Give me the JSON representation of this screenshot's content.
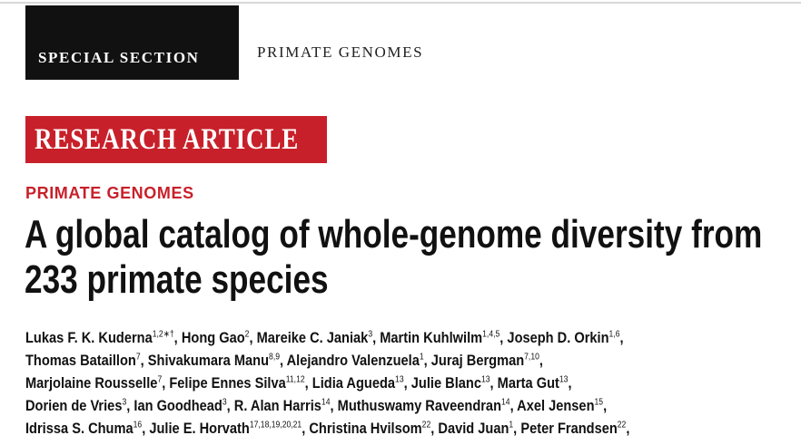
{
  "header": {
    "section_label": "SPECIAL SECTION",
    "section_topic": "PRIMATE GENOMES"
  },
  "article_type": "RESEARCH ARTICLE",
  "category": "PRIMATE GENOMES",
  "title": [
    "A global catalog of whole-genome diversity from",
    "233 primate species"
  ],
  "author_lines": [
    [
      {
        "name": "Lukas F. K. Kuderna",
        "sup": "1,2∗†",
        "after": ","
      },
      {
        "name": "Hong Gao",
        "sup": "2",
        "after": ","
      },
      {
        "name": "Mareike C. Janiak",
        "sup": "3",
        "after": ","
      },
      {
        "name": "Martin Kuhlwilm",
        "sup": "1,4,5",
        "after": ","
      },
      {
        "name": "Joseph D. Orkin",
        "sup": "1,6",
        "after": ","
      }
    ],
    [
      {
        "name": "Thomas Bataillon",
        "sup": "7",
        "after": ","
      },
      {
        "name": "Shivakumara Manu",
        "sup": "8,9",
        "after": ","
      },
      {
        "name": "Alejandro Valenzuela",
        "sup": "1",
        "after": ","
      },
      {
        "name": "Juraj Bergman",
        "sup": "7,10",
        "after": ","
      }
    ],
    [
      {
        "name": "Marjolaine Rousselle",
        "sup": "7",
        "after": ","
      },
      {
        "name": "Felipe Ennes Silva",
        "sup": "11,12",
        "after": ","
      },
      {
        "name": "Lidia Agueda",
        "sup": "13",
        "after": ","
      },
      {
        "name": "Julie Blanc",
        "sup": "13",
        "after": ","
      },
      {
        "name": "Marta Gut",
        "sup": "13",
        "after": ","
      }
    ],
    [
      {
        "name": "Dorien de Vries",
        "sup": "3",
        "after": ","
      },
      {
        "name": "Ian Goodhead",
        "sup": "3",
        "after": ","
      },
      {
        "name": "R. Alan Harris",
        "sup": "14",
        "after": ","
      },
      {
        "name": "Muthuswamy Raveendran",
        "sup": "14",
        "after": ","
      },
      {
        "name": "Axel Jensen",
        "sup": "15",
        "after": ","
      }
    ],
    [
      {
        "name": "Idrissa S. Chuma",
        "sup": "16",
        "after": ","
      },
      {
        "name": "Julie E. Horvath",
        "sup": "17,18,19,20,21",
        "after": ","
      },
      {
        "name": "Christina Hvilsom",
        "sup": "22",
        "after": ","
      },
      {
        "name": "David Juan",
        "sup": "1",
        "after": ","
      },
      {
        "name": "Peter Frandsen",
        "sup": "22",
        "after": ","
      }
    ]
  ]
}
